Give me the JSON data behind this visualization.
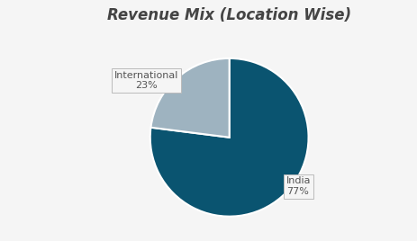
{
  "title": "Revenue Mix (Location Wise)",
  "slices": [
    77,
    23
  ],
  "labels": [
    "India",
    "International"
  ],
  "colors": [
    "#0a5470",
    "#9eb3c0"
  ],
  "startangle": 90,
  "background_color": "#f5f5f5",
  "title_fontsize": 12,
  "label_fontsize": 8
}
